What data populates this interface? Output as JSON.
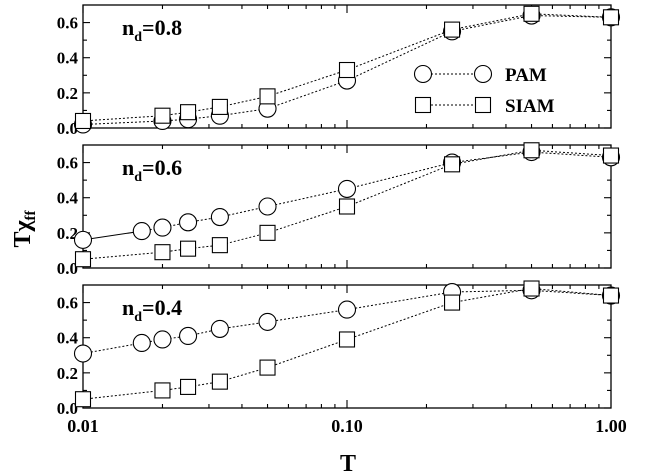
{
  "chart_data": {
    "type": "line",
    "xlabel": "T",
    "ylabel_main": "Tχ",
    "ylabel_sub": "ff",
    "x_scale": "log",
    "xlim": [
      0.01,
      1.0
    ],
    "ylim": [
      0.0,
      0.7
    ],
    "x_tick_labels": [
      "0.01",
      "0.10",
      "1.00"
    ],
    "y_tick_labels": [
      "0.0",
      "0.2",
      "0.4",
      "0.6"
    ],
    "legend": {
      "placement": "top-panel-right",
      "entries": [
        "PAM",
        "SIAM"
      ]
    },
    "panels": [
      {
        "label_main": "n",
        "label_sub": "d",
        "label_value": "=0.8",
        "series": [
          {
            "name": "PAM",
            "marker": "circle",
            "x": [
              0.01,
              0.02,
              0.025,
              0.033,
              0.05,
              0.1,
              0.25,
              0.5,
              1.0
            ],
            "y": [
              0.02,
              0.04,
              0.05,
              0.07,
              0.11,
              0.27,
              0.55,
              0.64,
              0.63
            ]
          },
          {
            "name": "SIAM",
            "marker": "square",
            "x": [
              0.01,
              0.02,
              0.025,
              0.033,
              0.05,
              0.1,
              0.25,
              0.5,
              1.0
            ],
            "y": [
              0.04,
              0.07,
              0.09,
              0.12,
              0.18,
              0.33,
              0.56,
              0.65,
              0.63
            ]
          }
        ]
      },
      {
        "label_main": "n",
        "label_sub": "d",
        "label_value": "=0.6",
        "series": [
          {
            "name": "PAM",
            "marker": "circle",
            "x": [
              0.01,
              0.0167,
              0.02,
              0.025,
              0.033,
              0.05,
              0.1,
              0.25,
              0.5,
              1.0
            ],
            "y": [
              0.16,
              0.21,
              0.23,
              0.26,
              0.29,
              0.35,
              0.45,
              0.6,
              0.66,
              0.63
            ],
            "solid_until": 1
          },
          {
            "name": "SIAM",
            "marker": "square",
            "x": [
              0.01,
              0.02,
              0.025,
              0.033,
              0.05,
              0.1,
              0.25,
              0.5,
              1.0
            ],
            "y": [
              0.05,
              0.09,
              0.11,
              0.13,
              0.2,
              0.35,
              0.59,
              0.67,
              0.64
            ]
          }
        ]
      },
      {
        "label_main": "n",
        "label_sub": "d",
        "label_value": "=0.4",
        "series": [
          {
            "name": "PAM",
            "marker": "circle",
            "x": [
              0.01,
              0.0167,
              0.02,
              0.025,
              0.033,
              0.05,
              0.1,
              0.25,
              0.5,
              1.0
            ],
            "y": [
              0.31,
              0.37,
              0.39,
              0.41,
              0.45,
              0.49,
              0.56,
              0.66,
              0.67,
              0.64
            ]
          },
          {
            "name": "SIAM",
            "marker": "square",
            "x": [
              0.01,
              0.02,
              0.025,
              0.033,
              0.05,
              0.1,
              0.25,
              0.5,
              1.0
            ],
            "y": [
              0.05,
              0.1,
              0.12,
              0.15,
              0.23,
              0.39,
              0.6,
              0.68,
              0.64
            ]
          }
        ]
      }
    ]
  }
}
